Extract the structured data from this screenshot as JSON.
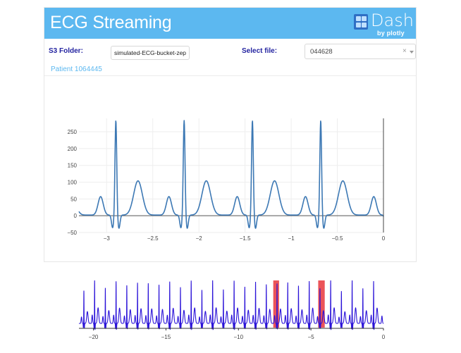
{
  "header": {
    "title": "ECG Streaming",
    "logo_word": "Dash",
    "logo_sub": "by plotly",
    "color": "#5cb8f0"
  },
  "controls": {
    "folder_label": "S3 Folder:",
    "folder_value": "simulated-ECG-bucket-zepp",
    "file_label": "Select file:",
    "file_value": "044628",
    "clear_glyph": "×"
  },
  "patient_label": "Patient 1064445",
  "chart_data": [
    {
      "type": "line",
      "title": "",
      "xlabel": "",
      "ylabel": "",
      "xlim": [
        -3.3,
        0
      ],
      "ylim": [
        -50,
        290
      ],
      "x_ticks": [
        -3,
        -2.5,
        -2,
        -1.5,
        -1,
        -0.5,
        0
      ],
      "x_tick_labels": [
        "−3",
        "−2.5",
        "−2",
        "−1.5",
        "−1",
        "−0.5",
        "0"
      ],
      "y_ticks": [
        -50,
        0,
        50,
        100,
        150,
        200,
        250
      ],
      "y_tick_labels": [
        "−50",
        "0",
        "50",
        "100",
        "150",
        "200",
        "250"
      ],
      "grid": true,
      "line_color": "#3c78b4",
      "beat_period": 0.74,
      "r_peaks": [
        -2.9,
        -2.16,
        -1.42,
        -0.68
      ],
      "r_peak_value": 265,
      "t_wave_value": 102,
      "p_wave_value": 55
    },
    {
      "type": "line",
      "title": "",
      "xlabel": "",
      "ylabel": "",
      "xlim": [
        -21,
        0
      ],
      "x_ticks": [
        -20,
        -15,
        -10,
        -5,
        0
      ],
      "x_tick_labels": [
        "−20",
        "−15",
        "−10",
        "−5",
        "0"
      ],
      "grid": false,
      "line_color": "#2a12d8",
      "beat_period": 0.74,
      "highlight_color": "#e8363c",
      "highlighted_ranges": [
        [
          -7.6,
          -7.2
        ],
        [
          -4.5,
          -4.05
        ]
      ]
    }
  ]
}
